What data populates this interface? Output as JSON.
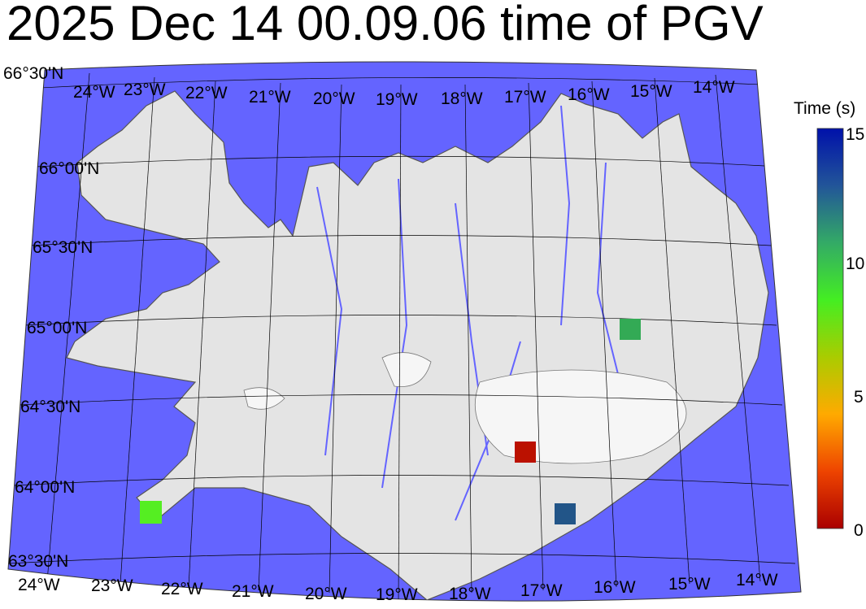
{
  "title": "2025 Dec 14 00.09.06 time of PGV",
  "colors": {
    "sea": "#6464ff",
    "land": "#e6e6e6",
    "grid": "#000000"
  },
  "map": {
    "top_lon_labels": [
      "24°W",
      "23°W",
      "22°W",
      "21°W",
      "20°W",
      "19°W",
      "18°W",
      "17°W",
      "16°W",
      "15°W",
      "14°W"
    ],
    "bottom_lon_labels": [
      "24°W",
      "23°W",
      "22°W",
      "21°W",
      "20°W",
      "19°W",
      "18°W",
      "17°W",
      "16°W",
      "15°W",
      "14°W"
    ],
    "lat_labels": [
      "66°30'N",
      "66°00'N",
      "65°30'N",
      "65°00'N",
      "64°30'N",
      "64°00'N",
      "63°30'N"
    ]
  },
  "stations": [
    {
      "time_s": 11.5,
      "color": "#33aa55"
    },
    {
      "time_s": 1,
      "color": "#bb1100"
    },
    {
      "time_s": 13,
      "color": "#225588"
    },
    {
      "time_s": 9.5,
      "color": "#55ee22"
    }
  ],
  "colorbar": {
    "title": "Time (s)",
    "ticks": [
      "15",
      "10",
      "5",
      "0"
    ],
    "range": [
      0,
      15
    ],
    "stops": [
      "#aa0000",
      "#ee4400",
      "#ffaa00",
      "#aacc00",
      "#44ee22",
      "#33aa66",
      "#225599",
      "#0011aa"
    ]
  }
}
